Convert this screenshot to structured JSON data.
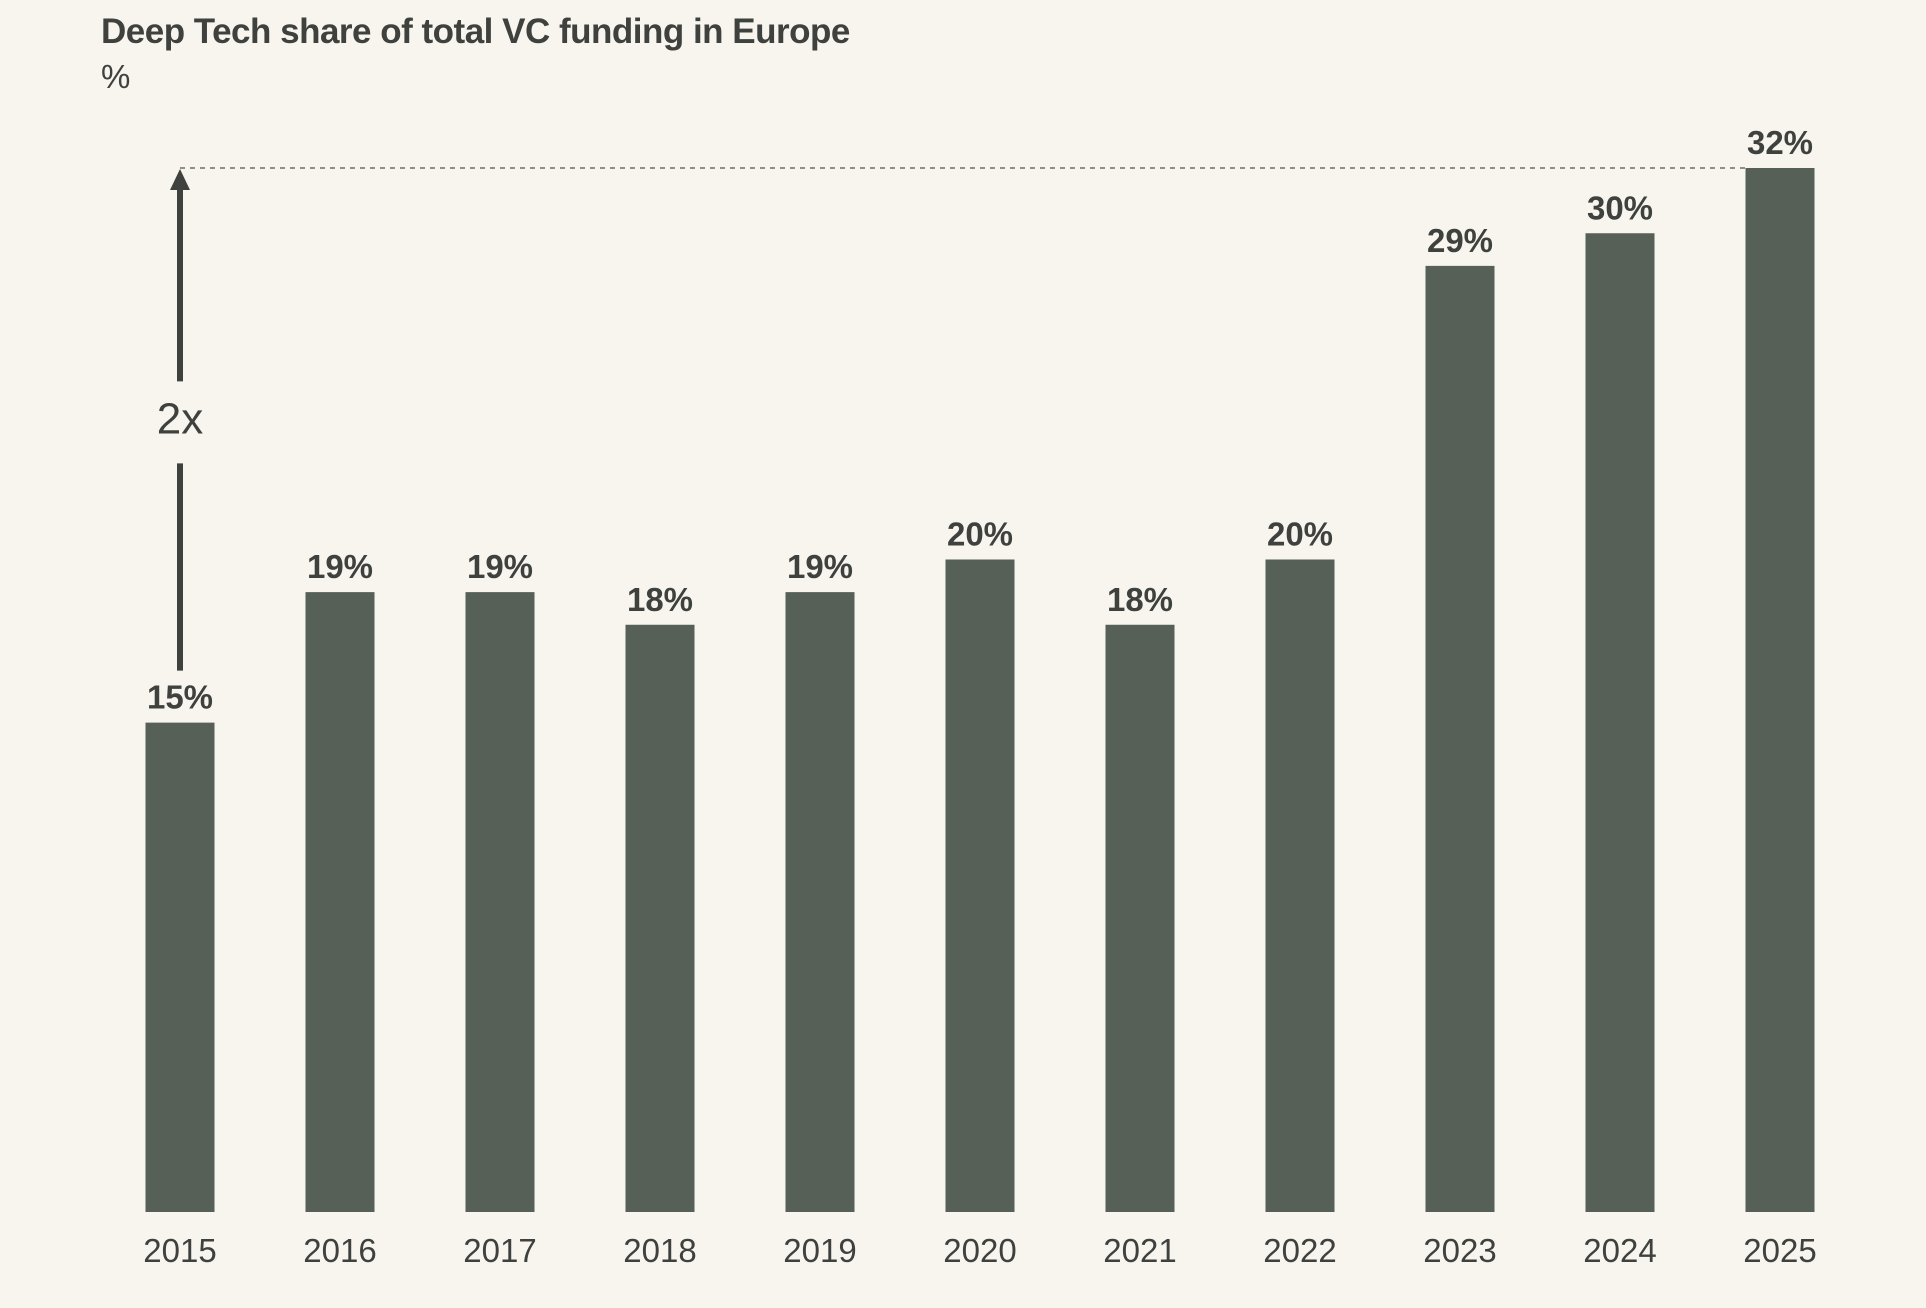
{
  "chart_data": {
    "type": "bar",
    "title": "Deep Tech share of total VC funding in Europe",
    "unit": "%",
    "categories": [
      "2015",
      "2016",
      "2017",
      "2018",
      "2019",
      "2020",
      "2021",
      "2022",
      "2023",
      "2024",
      "2025"
    ],
    "values": [
      15,
      19,
      19,
      18,
      19,
      20,
      18,
      20,
      29,
      30,
      32
    ],
    "value_labels": [
      "15%",
      "19%",
      "19%",
      "18%",
      "19%",
      "20%",
      "18%",
      "20%",
      "29%",
      "30%",
      "32%"
    ],
    "ylim": [
      0,
      32
    ],
    "grid": false,
    "annotation": {
      "label": "2x",
      "from_value": 15,
      "to_value": 32
    },
    "colors": {
      "bar": "#566056",
      "text": "#3e413d",
      "background": "#f8f5ef"
    }
  }
}
